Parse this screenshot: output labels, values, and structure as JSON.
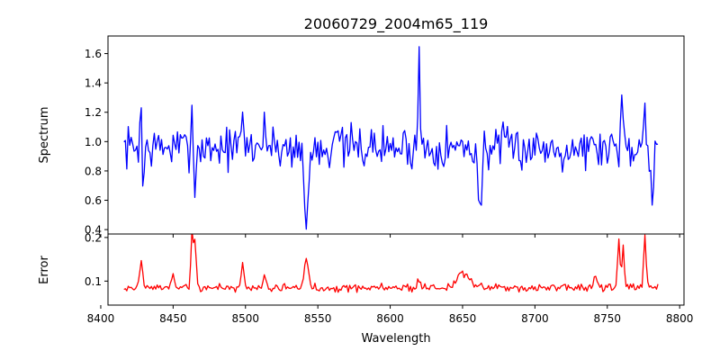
{
  "chart_data": [
    {
      "type": "line",
      "title": "20060729_2004m65_119",
      "xlabel": "",
      "ylabel": "Spectrum",
      "xlim": [
        8405,
        8803
      ],
      "ylim": [
        0.37,
        1.72
      ],
      "xticks": [
        8400,
        8450,
        8500,
        8550,
        8600,
        8650,
        8700,
        8750,
        8800
      ],
      "yticks": [
        0.4,
        0.6,
        0.8,
        1.0,
        1.2,
        1.4,
        1.6
      ],
      "ytick_labels": [
        "0.4",
        "0.6",
        "0.8",
        "1.0",
        "1.2",
        "1.4",
        "1.6"
      ],
      "series": [
        {
          "name": "Spectrum",
          "color": "#0000ff",
          "x_start": 8416,
          "x_end": 8785,
          "step": 1,
          "base": 0.96,
          "noise": 0.09,
          "features": [
            {
              "x": 8428.0,
              "dy": 0.42,
              "w": 0.8
            },
            {
              "x": 8429.0,
              "dy": -0.42,
              "w": 0.8
            },
            {
              "x": 8463.0,
              "dy": 0.25,
              "w": 0.8
            },
            {
              "x": 8465.0,
              "dy": -0.28,
              "w": 0.8
            },
            {
              "x": 8498.0,
              "dy": 0.2,
              "w": 0.8
            },
            {
              "x": 8513.0,
              "dy": 0.22,
              "w": 0.8
            },
            {
              "x": 8542.0,
              "dy": -0.55,
              "w": 1.4
            },
            {
              "x": 8562.0,
              "dy": 0.2,
              "w": 0.8
            },
            {
              "x": 8620.0,
              "dy": 0.7,
              "w": 0.6
            },
            {
              "x": 8662.0,
              "dy": -0.45,
              "w": 1.2
            },
            {
              "x": 8760.0,
              "dy": 0.4,
              "w": 0.8
            },
            {
              "x": 8776.0,
              "dy": 0.35,
              "w": 0.8
            },
            {
              "x": 8781.0,
              "dy": -0.35,
              "w": 0.8
            }
          ],
          "seed": 7
        }
      ]
    },
    {
      "type": "line",
      "title": "",
      "xlabel": "Wavelength",
      "ylabel": "Error",
      "xlim": [
        8405,
        8803
      ],
      "ylim": [
        0.045,
        0.208
      ],
      "xticks": [
        8400,
        8450,
        8500,
        8550,
        8600,
        8650,
        8700,
        8750,
        8800
      ],
      "xtick_labels": [
        "8400",
        "8450",
        "8500",
        "8550",
        "8600",
        "8650",
        "8700",
        "8750",
        "8800"
      ],
      "yticks": [
        0.1,
        0.2
      ],
      "ytick_labels": [
        "0.1",
        "0.2"
      ],
      "series": [
        {
          "name": "Error",
          "color": "#ff0000",
          "x_start": 8416,
          "x_end": 8785,
          "step": 1,
          "base": 0.085,
          "noise": 0.006,
          "features": [
            {
              "x": 8428.0,
              "dy": 0.06,
              "w": 1.0
            },
            {
              "x": 8450.0,
              "dy": 0.035,
              "w": 1.0
            },
            {
              "x": 8463.0,
              "dy": 0.12,
              "w": 0.8
            },
            {
              "x": 8465.0,
              "dy": 0.11,
              "w": 0.8
            },
            {
              "x": 8498.0,
              "dy": 0.05,
              "w": 1.0
            },
            {
              "x": 8513.0,
              "dy": 0.03,
              "w": 1.0
            },
            {
              "x": 8542.0,
              "dy": 0.06,
              "w": 1.5
            },
            {
              "x": 8620.0,
              "dy": 0.02,
              "w": 1.0
            },
            {
              "x": 8650.0,
              "dy": 0.035,
              "w": 4.0
            },
            {
              "x": 8742.0,
              "dy": 0.03,
              "w": 1.0
            },
            {
              "x": 8758.0,
              "dy": 0.105,
              "w": 0.8
            },
            {
              "x": 8761.0,
              "dy": 0.09,
              "w": 0.8
            },
            {
              "x": 8776.0,
              "dy": 0.12,
              "w": 0.8
            }
          ],
          "seed": 19
        }
      ]
    }
  ]
}
